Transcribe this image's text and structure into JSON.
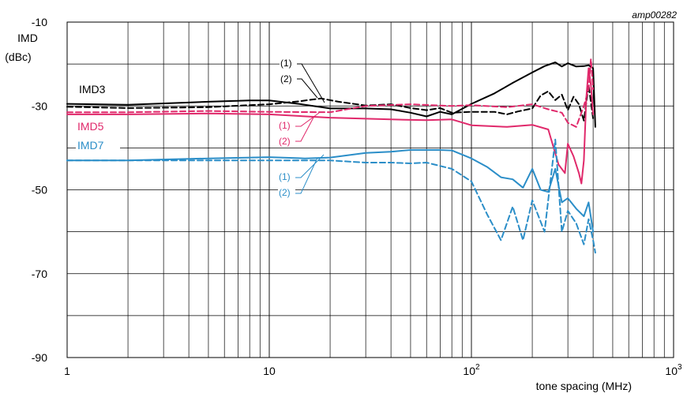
{
  "chart_data": {
    "type": "line",
    "figure_code": "amp00282",
    "ylabel_line1": "IMD",
    "ylabel_line2": "(dBc)",
    "xlabel": "tone spacing (MHz)",
    "xscale": "log",
    "xlim": [
      1,
      1000
    ],
    "ylim": [
      -90,
      -10
    ],
    "grid": true,
    "y_ticks": [
      "-10",
      "-30",
      "-50",
      "-70",
      "-90"
    ],
    "y_tick_values": [
      -10,
      -30,
      -50,
      -70,
      -90
    ],
    "x_ticks": [
      {
        "value": 1,
        "base": "1",
        "exp": ""
      },
      {
        "value": 10,
        "base": "10",
        "exp": ""
      },
      {
        "value": 100,
        "base": "10",
        "exp": "2"
      },
      {
        "value": 1000,
        "base": "10",
        "exp": "3"
      }
    ],
    "colors": {
      "imd3": "#000000",
      "imd5": "#e0296b",
      "imd7": "#2b8ec8"
    },
    "group_labels": [
      {
        "text": "IMD3",
        "color": "#000000"
      },
      {
        "text": "IMD5",
        "color": "#e0296b"
      },
      {
        "text": "IMD7",
        "color": "#2b8ec8"
      }
    ],
    "annotations": [
      {
        "text": "(1)",
        "color": "#000000"
      },
      {
        "text": "(2)",
        "color": "#000000"
      },
      {
        "text": "(1)",
        "color": "#e0296b"
      },
      {
        "text": "(2)",
        "color": "#e0296b"
      },
      {
        "text": "(1)",
        "color": "#2b8ec8"
      },
      {
        "text": "(2)",
        "color": "#2b8ec8"
      }
    ],
    "series": [
      {
        "group": "IMD3",
        "curve": "(1)",
        "style": "solid",
        "color": "#000000",
        "x": [
          1,
          2,
          5,
          8,
          10,
          14,
          20,
          30,
          40,
          50,
          60,
          70,
          80,
          100,
          130,
          160,
          200,
          230,
          260,
          280,
          300,
          330,
          360,
          380,
          400,
          410
        ],
        "y": [
          -29.5,
          -29.7,
          -29,
          -28.7,
          -28.7,
          -29.5,
          -30.6,
          -30.6,
          -30.8,
          -31.6,
          -32.5,
          -31.4,
          -32,
          -29.5,
          -27,
          -24.5,
          -22,
          -20.5,
          -19.6,
          -20.6,
          -19.8,
          -20.6,
          -20.5,
          -20.3,
          -21,
          -35
        ]
      },
      {
        "group": "IMD3",
        "curve": "(2)",
        "style": "dashed",
        "color": "#000000",
        "x": [
          1,
          2,
          5,
          8,
          10,
          14,
          18,
          22,
          30,
          40,
          50,
          60,
          70,
          80,
          100,
          130,
          150,
          170,
          200,
          220,
          240,
          260,
          280,
          300,
          320,
          340,
          360,
          380,
          400
        ],
        "y": [
          -30.2,
          -30.5,
          -30.3,
          -29.8,
          -29.6,
          -28.9,
          -28.2,
          -29,
          -29.9,
          -29.6,
          -30.5,
          -31,
          -30.5,
          -31.6,
          -31.4,
          -31.4,
          -32,
          -31.3,
          -30.6,
          -27.5,
          -26.5,
          -28.6,
          -27.3,
          -31,
          -27.8,
          -29.6,
          -33.5,
          -25,
          -33
        ]
      },
      {
        "group": "IMD5",
        "curve": "(1)",
        "style": "solid",
        "color": "#e0296b",
        "x": [
          1,
          2,
          5,
          10,
          20,
          40,
          60,
          80,
          100,
          150,
          200,
          240,
          270,
          290,
          300,
          320,
          340,
          350,
          360,
          370,
          380,
          390,
          400
        ],
        "y": [
          -32,
          -32,
          -31.8,
          -32,
          -32.8,
          -33.2,
          -33.4,
          -33.2,
          -34.6,
          -35,
          -34.5,
          -35.6,
          -44,
          -46,
          -39,
          -42,
          -46,
          -48.5,
          -43,
          -28,
          -21,
          -25,
          -32
        ]
      },
      {
        "group": "IMD5",
        "curve": "(2)",
        "style": "dashed",
        "color": "#e0296b",
        "x": [
          1,
          2,
          5,
          10,
          20,
          30,
          50,
          80,
          100,
          150,
          200,
          240,
          280,
          300,
          330,
          360,
          380,
          390,
          400
        ],
        "y": [
          -31.5,
          -31.5,
          -31.2,
          -31.4,
          -31.5,
          -30,
          -29.6,
          -30,
          -29.8,
          -30.3,
          -29.6,
          -30.8,
          -31.6,
          -34,
          -35,
          -30,
          -26,
          -18.8,
          -26
        ]
      },
      {
        "group": "IMD7",
        "curve": "(1)",
        "style": "solid",
        "color": "#2b8ec8",
        "x": [
          1,
          2,
          5,
          10,
          15,
          20,
          30,
          40,
          50,
          70,
          80,
          100,
          120,
          140,
          160,
          180,
          200,
          220,
          240,
          260,
          280,
          300,
          330,
          360,
          380,
          400
        ],
        "y": [
          -43,
          -43,
          -42.5,
          -42.2,
          -42.5,
          -42.3,
          -41.2,
          -40.9,
          -40.5,
          -40.5,
          -40.6,
          -42.5,
          -44.6,
          -47,
          -47.5,
          -49.5,
          -45,
          -50,
          -50.5,
          -45,
          -53,
          -52,
          -54.5,
          -56.3,
          -53,
          -60
        ]
      },
      {
        "group": "IMD7",
        "curve": "(2)",
        "style": "dashed",
        "color": "#2b8ec8",
        "x": [
          1,
          2,
          5,
          10,
          20,
          30,
          40,
          50,
          60,
          80,
          100,
          120,
          140,
          160,
          180,
          200,
          230,
          260,
          280,
          300,
          330,
          360,
          380,
          400,
          410
        ],
        "y": [
          -43,
          -43,
          -43,
          -43,
          -43,
          -43.5,
          -43.5,
          -43.7,
          -43.5,
          -45,
          -48,
          -56,
          -62,
          -54,
          -62,
          -52.5,
          -60,
          -38,
          -60,
          -55,
          -58,
          -63,
          -57,
          -62,
          -65
        ]
      }
    ]
  }
}
